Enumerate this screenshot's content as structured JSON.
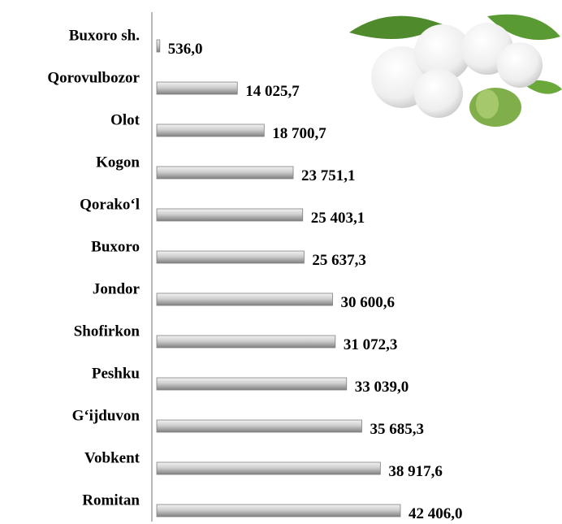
{
  "chart_data": {
    "type": "barh",
    "categories": [
      "Buxoro sh.",
      "Qorovulbozor",
      "Olot",
      "Kogon",
      "Qorako‘l",
      "Buxoro",
      "Jondor",
      "Shofirkon",
      "Peshku",
      "G‘ijduvon",
      "Vobkent",
      "Romitan"
    ],
    "values": [
      536.0,
      14025.7,
      18700.7,
      23751.1,
      25403.1,
      25637.3,
      30600.6,
      31072.3,
      33039.0,
      35685.3,
      38917.6,
      42406.0
    ],
    "value_labels": [
      "536,0",
      "14 025,7",
      "18 700,7",
      "23 751,1",
      "25 403,1",
      "25 637,3",
      "30 600,6",
      "31 072,3",
      "33 039,0",
      "35 685,3",
      "38 917,6",
      "42 406,0"
    ],
    "color": "#a6a6a6"
  }
}
